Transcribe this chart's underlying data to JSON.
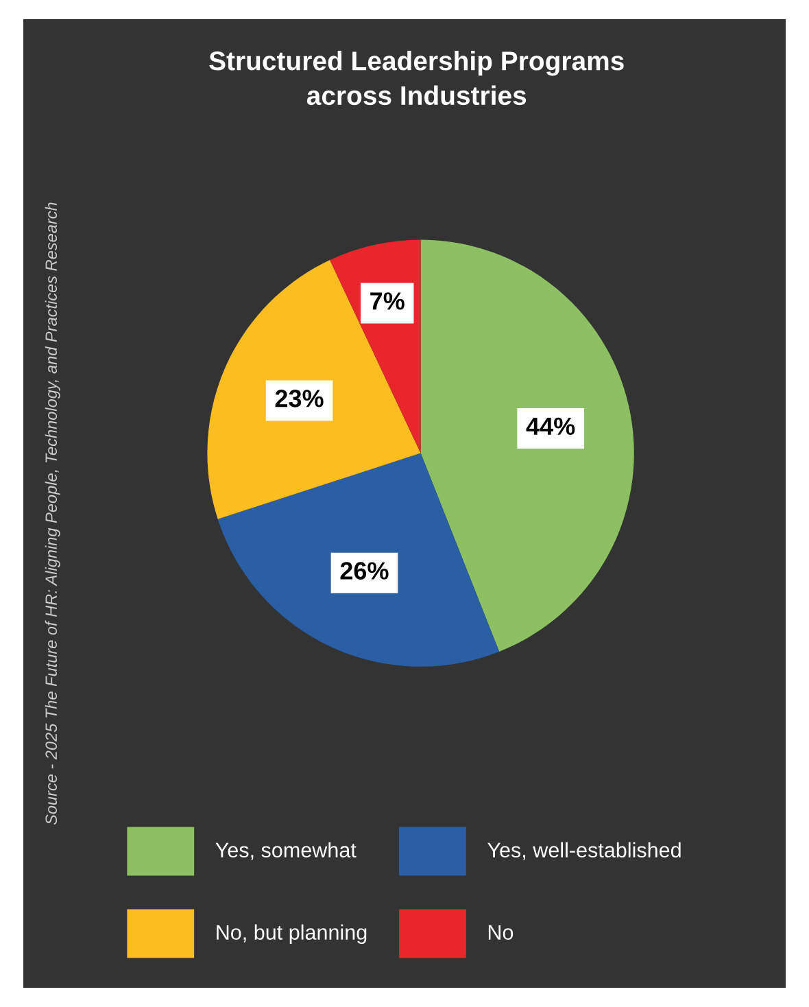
{
  "chart_data": {
    "type": "pie",
    "title": "Structured Leadership Programs\nacross Industries",
    "categories": [
      "Yes, somewhat",
      "Yes, well-established",
      "No, but planning",
      "No"
    ],
    "values": [
      44,
      26,
      23,
      7
    ],
    "colors": [
      "#8cc063",
      "#2a5fa5",
      "#fcbd21",
      "#e8262b"
    ],
    "value_labels": [
      "44%",
      "26%",
      "23%",
      "7%"
    ],
    "legend": "bottom",
    "annotations": [
      "Source - 2025 The Future of HR: Aligning People, Technology, and Practices Research"
    ]
  }
}
